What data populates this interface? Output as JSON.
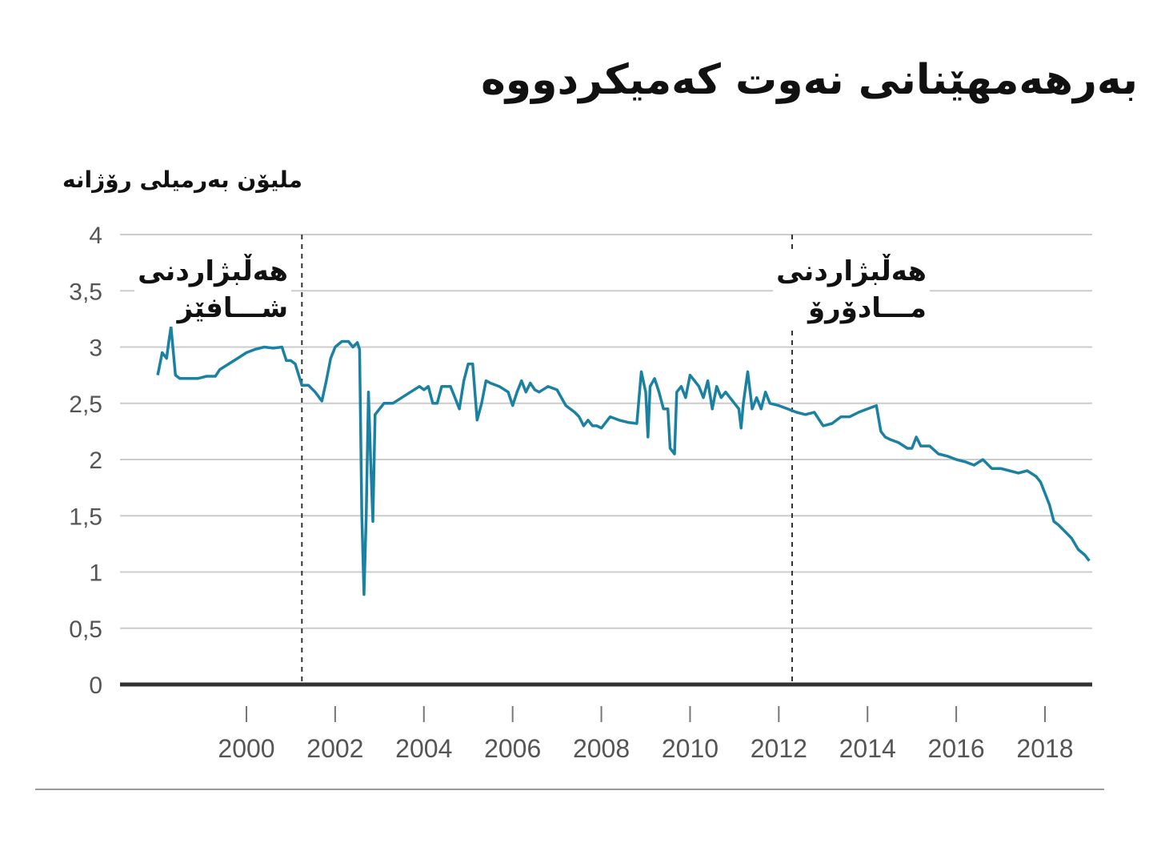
{
  "title": "بەرهەمهێنانی نەوت کەمیکردووە",
  "chart_data": {
    "type": "line",
    "ylabel": "ملیۆن بەرمیلی رۆژانە",
    "xlabel": "",
    "ylim": [
      0,
      4
    ],
    "xlim": [
      1998.0,
      2019.5
    ],
    "y_ticks": [
      "0",
      "0,5",
      "1",
      "1,5",
      "2",
      "2,5",
      "3",
      "3,5",
      "4"
    ],
    "x_ticks": [
      "2000",
      "2002",
      "2004",
      "2006",
      "2008",
      "2010",
      "2012",
      "2014",
      "2016",
      "2018"
    ],
    "grid": true,
    "line_color": "#1a81a3",
    "annotations": [
      {
        "x": 2001.25,
        "text_line1": "هەڵبژاردنی",
        "text_line2": "شـــافێز"
      },
      {
        "x": 2012.3,
        "text_line1": "هەڵبژاردنی",
        "text_line2": "مـــادۆرۆ"
      }
    ],
    "series": [
      {
        "points": [
          [
            1998.0,
            2.75
          ],
          [
            1998.1,
            2.95
          ],
          [
            1998.2,
            2.9
          ],
          [
            1998.25,
            3.05
          ],
          [
            1998.3,
            3.18
          ],
          [
            1998.4,
            2.75
          ],
          [
            1998.5,
            2.72
          ],
          [
            1998.7,
            2.72
          ],
          [
            1998.9,
            2.72
          ],
          [
            1999.1,
            2.74
          ],
          [
            1999.3,
            2.74
          ],
          [
            1999.4,
            2.8
          ],
          [
            1999.6,
            2.85
          ],
          [
            1999.8,
            2.9
          ],
          [
            2000.0,
            2.95
          ],
          [
            2000.2,
            2.98
          ],
          [
            2000.4,
            3.0
          ],
          [
            2000.6,
            2.99
          ],
          [
            2000.8,
            3.0
          ],
          [
            2000.9,
            2.88
          ],
          [
            2001.0,
            2.88
          ],
          [
            2001.1,
            2.85
          ],
          [
            2001.25,
            2.66
          ],
          [
            2001.4,
            2.66
          ],
          [
            2001.55,
            2.6
          ],
          [
            2001.7,
            2.52
          ],
          [
            2001.8,
            2.7
          ],
          [
            2001.9,
            2.9
          ],
          [
            2002.0,
            3.0
          ],
          [
            2002.15,
            3.05
          ],
          [
            2002.3,
            3.05
          ],
          [
            2002.4,
            3.0
          ],
          [
            2002.5,
            3.04
          ],
          [
            2002.55,
            2.98
          ],
          [
            2002.6,
            1.5
          ],
          [
            2002.65,
            0.8
          ],
          [
            2002.7,
            1.5
          ],
          [
            2002.75,
            2.6
          ],
          [
            2002.8,
            2.0
          ],
          [
            2002.85,
            1.45
          ],
          [
            2002.9,
            2.4
          ],
          [
            2003.0,
            2.45
          ],
          [
            2003.1,
            2.5
          ],
          [
            2003.3,
            2.5
          ],
          [
            2003.5,
            2.55
          ],
          [
            2003.7,
            2.6
          ],
          [
            2003.9,
            2.65
          ],
          [
            2004.0,
            2.62
          ],
          [
            2004.1,
            2.65
          ],
          [
            2004.2,
            2.5
          ],
          [
            2004.3,
            2.5
          ],
          [
            2004.4,
            2.65
          ],
          [
            2004.6,
            2.65
          ],
          [
            2004.7,
            2.55
          ],
          [
            2004.8,
            2.45
          ],
          [
            2004.9,
            2.7
          ],
          [
            2005.0,
            2.85
          ],
          [
            2005.1,
            2.85
          ],
          [
            2005.2,
            2.35
          ],
          [
            2005.3,
            2.5
          ],
          [
            2005.4,
            2.7
          ],
          [
            2005.5,
            2.68
          ],
          [
            2005.7,
            2.65
          ],
          [
            2005.9,
            2.6
          ],
          [
            2006.0,
            2.48
          ],
          [
            2006.1,
            2.6
          ],
          [
            2006.2,
            2.7
          ],
          [
            2006.3,
            2.6
          ],
          [
            2006.4,
            2.68
          ],
          [
            2006.5,
            2.62
          ],
          [
            2006.6,
            2.6
          ],
          [
            2006.8,
            2.65
          ],
          [
            2007.0,
            2.62
          ],
          [
            2007.2,
            2.48
          ],
          [
            2007.4,
            2.42
          ],
          [
            2007.5,
            2.38
          ],
          [
            2007.6,
            2.3
          ],
          [
            2007.7,
            2.35
          ],
          [
            2007.8,
            2.3
          ],
          [
            2007.9,
            2.3
          ],
          [
            2008.0,
            2.28
          ],
          [
            2008.2,
            2.38
          ],
          [
            2008.4,
            2.35
          ],
          [
            2008.6,
            2.33
          ],
          [
            2008.8,
            2.32
          ],
          [
            2008.9,
            2.78
          ],
          [
            2009.0,
            2.6
          ],
          [
            2009.05,
            2.2
          ],
          [
            2009.1,
            2.65
          ],
          [
            2009.2,
            2.72
          ],
          [
            2009.3,
            2.6
          ],
          [
            2009.4,
            2.45
          ],
          [
            2009.5,
            2.45
          ],
          [
            2009.55,
            2.1
          ],
          [
            2009.65,
            2.05
          ],
          [
            2009.7,
            2.6
          ],
          [
            2009.8,
            2.65
          ],
          [
            2009.9,
            2.55
          ],
          [
            2010.0,
            2.75
          ],
          [
            2010.1,
            2.7
          ],
          [
            2010.2,
            2.65
          ],
          [
            2010.3,
            2.55
          ],
          [
            2010.4,
            2.7
          ],
          [
            2010.5,
            2.45
          ],
          [
            2010.6,
            2.65
          ],
          [
            2010.7,
            2.55
          ],
          [
            2010.8,
            2.6
          ],
          [
            2010.9,
            2.55
          ],
          [
            2011.0,
            2.5
          ],
          [
            2011.1,
            2.45
          ],
          [
            2011.15,
            2.28
          ],
          [
            2011.2,
            2.5
          ],
          [
            2011.3,
            2.78
          ],
          [
            2011.4,
            2.45
          ],
          [
            2011.5,
            2.55
          ],
          [
            2011.6,
            2.45
          ],
          [
            2011.7,
            2.6
          ],
          [
            2011.8,
            2.5
          ],
          [
            2012.0,
            2.48
          ],
          [
            2012.2,
            2.45
          ],
          [
            2012.4,
            2.42
          ],
          [
            2012.6,
            2.4
          ],
          [
            2012.8,
            2.42
          ],
          [
            2013.0,
            2.3
          ],
          [
            2013.2,
            2.32
          ],
          [
            2013.4,
            2.38
          ],
          [
            2013.6,
            2.38
          ],
          [
            2013.8,
            2.42
          ],
          [
            2014.0,
            2.45
          ],
          [
            2014.2,
            2.48
          ],
          [
            2014.3,
            2.25
          ],
          [
            2014.4,
            2.2
          ],
          [
            2014.5,
            2.18
          ],
          [
            2014.7,
            2.15
          ],
          [
            2014.9,
            2.1
          ],
          [
            2015.0,
            2.1
          ],
          [
            2015.1,
            2.2
          ],
          [
            2015.2,
            2.12
          ],
          [
            2015.4,
            2.12
          ],
          [
            2015.6,
            2.05
          ],
          [
            2015.8,
            2.03
          ],
          [
            2016.0,
            2.0
          ],
          [
            2016.2,
            1.98
          ],
          [
            2016.4,
            1.95
          ],
          [
            2016.6,
            2.0
          ],
          [
            2016.8,
            1.92
          ],
          [
            2017.0,
            1.92
          ],
          [
            2017.2,
            1.9
          ],
          [
            2017.4,
            1.88
          ],
          [
            2017.6,
            1.9
          ],
          [
            2017.8,
            1.85
          ],
          [
            2017.9,
            1.8
          ],
          [
            2018.0,
            1.7
          ],
          [
            2018.1,
            1.6
          ],
          [
            2018.2,
            1.45
          ],
          [
            2018.3,
            1.42
          ],
          [
            2018.45,
            1.36
          ],
          [
            2018.6,
            1.3
          ],
          [
            2018.75,
            1.2
          ],
          [
            2018.9,
            1.15
          ],
          [
            2019.0,
            1.1
          ]
        ]
      }
    ]
  }
}
